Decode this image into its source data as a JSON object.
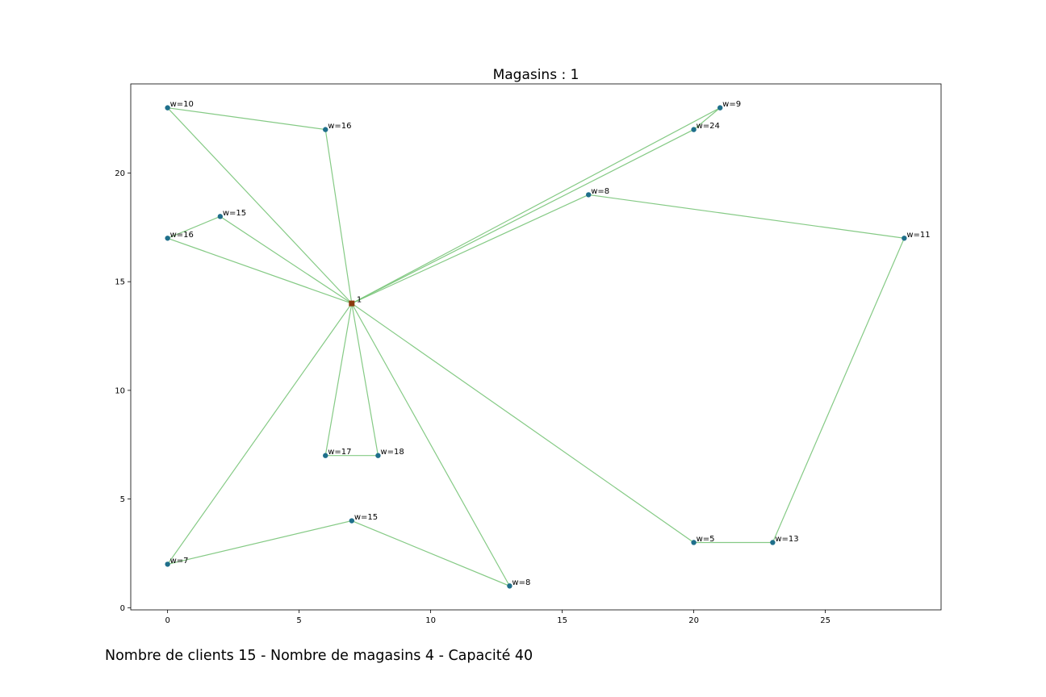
{
  "chart_data": {
    "type": "scatter",
    "title": "Magasins : 1",
    "xlabel": "",
    "ylabel": "",
    "xlim": [
      -1.4,
      29.4
    ],
    "ylim": [
      -0.1,
      24.1
    ],
    "xticks": [
      0,
      5,
      10,
      15,
      20,
      25
    ],
    "yticks": [
      0,
      5,
      10,
      15,
      20
    ],
    "grid": false,
    "colors": {
      "client": "#1f6f8b",
      "depot": "#8b3a0e",
      "edge": "#5cb85c"
    },
    "depots": [
      {
        "x": 7,
        "y": 14,
        "label": "1"
      }
    ],
    "clients": [
      {
        "x": 0,
        "y": 23,
        "label": "w=10"
      },
      {
        "x": 6,
        "y": 22,
        "label": "w=16"
      },
      {
        "x": 21,
        "y": 23,
        "label": "w=9"
      },
      {
        "x": 20,
        "y": 22,
        "label": "w=24"
      },
      {
        "x": 16,
        "y": 19,
        "label": "w=8"
      },
      {
        "x": 2,
        "y": 18,
        "label": "w=15"
      },
      {
        "x": 0,
        "y": 17,
        "label": "w=16"
      },
      {
        "x": 28,
        "y": 17,
        "label": "w=11"
      },
      {
        "x": 6,
        "y": 7,
        "label": "w=17"
      },
      {
        "x": 8,
        "y": 7,
        "label": "w=18"
      },
      {
        "x": 7,
        "y": 4,
        "label": "w=15"
      },
      {
        "x": 20,
        "y": 3,
        "label": "w=5"
      },
      {
        "x": 23,
        "y": 3,
        "label": "w=13"
      },
      {
        "x": 0,
        "y": 2,
        "label": "w=7"
      },
      {
        "x": 13,
        "y": 1,
        "label": "w=8"
      }
    ],
    "routes": [
      [
        [
          7,
          14
        ],
        [
          0,
          23
        ],
        [
          6,
          22
        ],
        [
          7,
          14
        ]
      ],
      [
        [
          7,
          14
        ],
        [
          21,
          23
        ],
        [
          20,
          22
        ],
        [
          7,
          14
        ]
      ],
      [
        [
          7,
          14
        ],
        [
          16,
          19
        ],
        [
          28,
          17
        ],
        [
          23,
          3
        ],
        [
          20,
          3
        ],
        [
          7,
          14
        ]
      ],
      [
        [
          7,
          14
        ],
        [
          2,
          18
        ],
        [
          0,
          17
        ],
        [
          7,
          14
        ]
      ],
      [
        [
          7,
          14
        ],
        [
          6,
          7
        ],
        [
          8,
          7
        ],
        [
          7,
          14
        ]
      ],
      [
        [
          7,
          14
        ],
        [
          0,
          2
        ],
        [
          7,
          4
        ],
        [
          13,
          1
        ],
        [
          7,
          14
        ]
      ]
    ]
  },
  "caption": "Nombre de clients 15 - Nombre de magasins 4 - Capacité 40"
}
